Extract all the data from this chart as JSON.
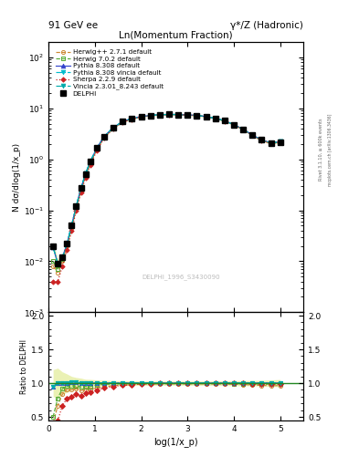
{
  "title_left": "91 GeV ee",
  "title_right": "γ*/Z (Hadronic)",
  "plot_title": "Ln(Momentum Fraction)",
  "xlabel": "log(1/x_p)",
  "ylabel_main": "N dσ/dlog(1/x_p)",
  "ylabel_ratio": "Ratio to DELPHI",
  "right_label1": "Rivet 3.1.10, ≥ 600k events",
  "right_label2": "mcplots.cern.ch [arXiv:1306.3436]",
  "watermark": "DELPHI_1996_S3430090",
  "x_data": [
    0.1,
    0.2,
    0.3,
    0.4,
    0.5,
    0.6,
    0.7,
    0.8,
    0.9,
    1.05,
    1.2,
    1.4,
    1.6,
    1.8,
    2.0,
    2.2,
    2.4,
    2.6,
    2.8,
    3.0,
    3.2,
    3.4,
    3.6,
    3.8,
    4.0,
    4.2,
    4.4,
    4.6,
    4.8,
    5.0
  ],
  "delphi_y": [
    0.02,
    0.009,
    0.012,
    0.022,
    0.05,
    0.12,
    0.27,
    0.52,
    0.9,
    1.7,
    2.8,
    4.2,
    5.5,
    6.3,
    6.9,
    7.25,
    7.5,
    7.6,
    7.55,
    7.45,
    7.25,
    6.9,
    6.4,
    5.7,
    4.8,
    3.9,
    3.0,
    2.4,
    2.1,
    2.2
  ],
  "delphi_err": [
    0.004,
    0.002,
    0.002,
    0.003,
    0.005,
    0.01,
    0.02,
    0.03,
    0.05,
    0.08,
    0.12,
    0.16,
    0.2,
    0.22,
    0.23,
    0.24,
    0.24,
    0.24,
    0.24,
    0.24,
    0.24,
    0.23,
    0.22,
    0.2,
    0.18,
    0.15,
    0.12,
    0.1,
    0.1,
    0.12
  ],
  "herwig271_y": [
    0.008,
    0.006,
    0.01,
    0.02,
    0.045,
    0.11,
    0.24,
    0.47,
    0.82,
    1.58,
    2.65,
    4.05,
    5.35,
    6.15,
    6.8,
    7.15,
    7.42,
    7.52,
    7.47,
    7.37,
    7.17,
    6.82,
    6.32,
    5.62,
    4.72,
    3.82,
    2.92,
    2.32,
    2.02,
    2.12
  ],
  "herwig702_y": [
    0.01,
    0.007,
    0.011,
    0.021,
    0.048,
    0.115,
    0.255,
    0.495,
    0.855,
    1.65,
    2.75,
    4.15,
    5.45,
    6.25,
    6.88,
    7.22,
    7.48,
    7.58,
    7.52,
    7.42,
    7.22,
    6.87,
    6.37,
    5.67,
    4.77,
    3.87,
    2.97,
    2.37,
    2.07,
    2.17
  ],
  "pythia8308_y": [
    0.019,
    0.009,
    0.012,
    0.022,
    0.051,
    0.121,
    0.271,
    0.521,
    0.901,
    1.705,
    2.805,
    4.205,
    5.505,
    6.305,
    6.905,
    7.255,
    7.505,
    7.605,
    7.555,
    7.455,
    7.255,
    6.905,
    6.405,
    5.705,
    4.805,
    3.905,
    3.005,
    2.405,
    2.105,
    2.205
  ],
  "pythia8308v_y": [
    0.019,
    0.009,
    0.012,
    0.022,
    0.051,
    0.121,
    0.271,
    0.521,
    0.901,
    1.705,
    2.805,
    4.205,
    5.505,
    6.305,
    6.905,
    7.255,
    7.505,
    7.605,
    7.555,
    7.455,
    7.255,
    6.905,
    6.405,
    5.705,
    4.805,
    3.905,
    3.005,
    2.405,
    2.105,
    2.205
  ],
  "sherpa_y": [
    0.004,
    0.004,
    0.008,
    0.017,
    0.04,
    0.1,
    0.22,
    0.44,
    0.78,
    1.52,
    2.6,
    4.0,
    5.32,
    6.15,
    6.83,
    7.2,
    7.47,
    7.58,
    7.53,
    7.43,
    7.23,
    6.88,
    6.38,
    5.68,
    4.78,
    3.88,
    2.98,
    2.38,
    2.08,
    2.18
  ],
  "vincia_y": [
    0.019,
    0.009,
    0.012,
    0.022,
    0.051,
    0.121,
    0.271,
    0.521,
    0.901,
    1.705,
    2.805,
    4.205,
    5.505,
    6.305,
    6.905,
    7.255,
    7.505,
    7.605,
    7.555,
    7.455,
    7.255,
    6.905,
    6.405,
    5.705,
    4.805,
    3.905,
    3.005,
    2.405,
    2.105,
    2.205
  ],
  "colors": {
    "delphi": "#000000",
    "herwig271": "#cc8833",
    "herwig702": "#55aa33",
    "pythia8308": "#3344cc",
    "pythia8308v": "#00bbcc",
    "sherpa": "#cc2222",
    "vincia": "#00aaaa"
  },
  "xlim": [
    0.0,
    5.5
  ],
  "ylim_main": [
    0.001,
    200.0
  ],
  "ylim_ratio": [
    0.45,
    2.05
  ],
  "ratio_yticks": [
    0.5,
    1.0,
    1.5,
    2.0
  ],
  "xticks": [
    0,
    1,
    2,
    3,
    4,
    5
  ],
  "background_color": "#ffffff"
}
